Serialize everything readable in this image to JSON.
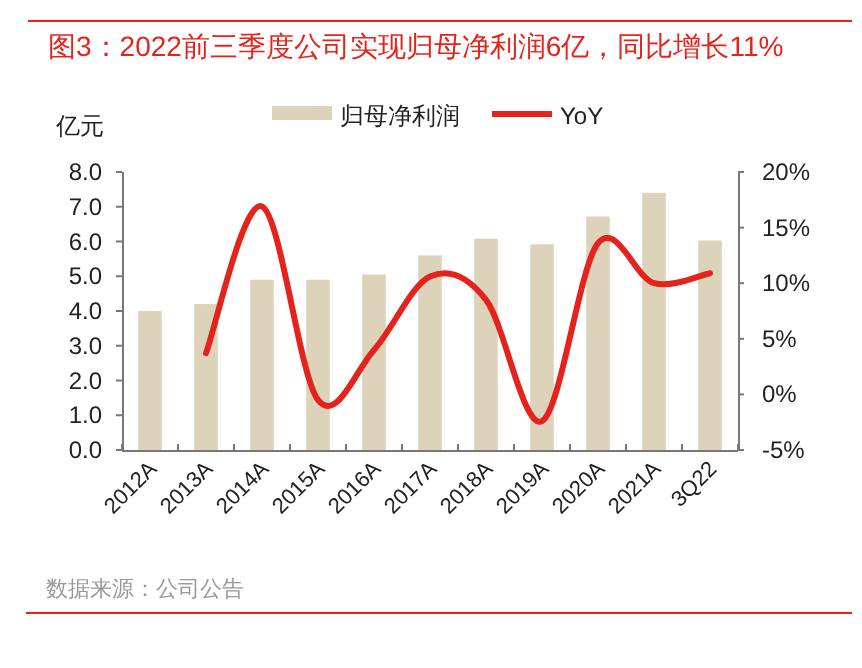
{
  "chart_data": {
    "type": "bar",
    "title": "图3：2022前三季度公司实现归母净利润6亿，同比增长11%",
    "ylabel": "亿元",
    "categories": [
      "2012A",
      "2013A",
      "2014A",
      "2015A",
      "2016A",
      "2017A",
      "2018A",
      "2019A",
      "2020A",
      "2021A",
      "3Q22"
    ],
    "series": [
      {
        "name": "归母净利润",
        "color": "#ddd3bb",
        "values": [
          4.0,
          4.2,
          4.9,
          4.9,
          5.05,
          5.6,
          6.08,
          5.92,
          6.72,
          7.4,
          6.03
        ]
      },
      {
        "name": "YoY",
        "type": "line",
        "axis": "y2",
        "color": "#e3231c",
        "values": [
          null,
          3.7,
          16.9,
          -0.5,
          4.0,
          10.6,
          8.5,
          -2.4,
          13.6,
          10.0,
          10.9
        ]
      }
    ],
    "ylim": [
      0,
      8
    ],
    "yticks": [
      {
        "value": 0,
        "label": "0.0"
      },
      {
        "value": 1,
        "label": "1.0"
      },
      {
        "value": 2,
        "label": "2.0"
      },
      {
        "value": 3,
        "label": "3.0"
      },
      {
        "value": 4,
        "label": "4.0"
      },
      {
        "value": 5,
        "label": "5.0"
      },
      {
        "value": 6,
        "label": "6.0"
      },
      {
        "value": 7,
        "label": "7.0"
      },
      {
        "value": 8,
        "label": "8.0"
      }
    ],
    "y2lim": [
      -5,
      20
    ],
    "y2ticks": [
      {
        "value": -5,
        "label": "-5%"
      },
      {
        "value": 0,
        "label": "0%"
      },
      {
        "value": 5,
        "label": "5%"
      },
      {
        "value": 10,
        "label": "10%"
      },
      {
        "value": 15,
        "label": "15%"
      },
      {
        "value": 20,
        "label": "20%"
      }
    ],
    "legend": "top",
    "grid": false,
    "annotations": [
      "数据来源：公司公告"
    ]
  }
}
